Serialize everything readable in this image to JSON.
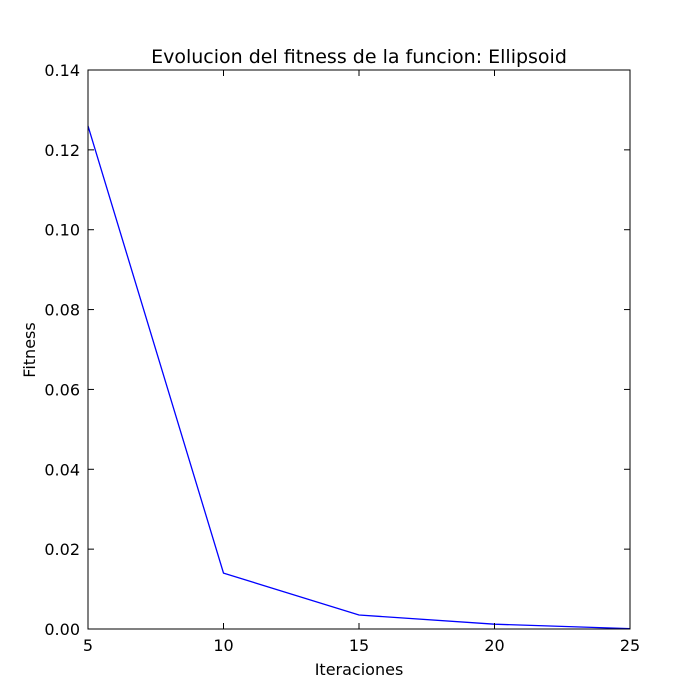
{
  "chart_data": {
    "type": "line",
    "title": "Evolucion del fitness de la funcion: Ellipsoid",
    "xlabel": "Iteraciones",
    "ylabel": "Fitness",
    "xlim": [
      5,
      25
    ],
    "ylim": [
      0,
      0.14
    ],
    "x_ticks": [
      5,
      10,
      15,
      20,
      25
    ],
    "y_ticks": [
      0.0,
      0.02,
      0.04,
      0.06,
      0.08,
      0.1,
      0.12,
      0.14
    ],
    "x_tick_labels": [
      "5",
      "10",
      "15",
      "20",
      "25"
    ],
    "y_tick_labels": [
      "0.00",
      "0.02",
      "0.04",
      "0.06",
      "0.08",
      "0.10",
      "0.12",
      "0.14"
    ],
    "grid": false,
    "series": [
      {
        "x": [
          5,
          10,
          15,
          20,
          25
        ],
        "y": [
          0.126,
          0.014,
          0.0035,
          0.0012,
          0.0001
        ],
        "color": "#0000ff"
      }
    ]
  }
}
